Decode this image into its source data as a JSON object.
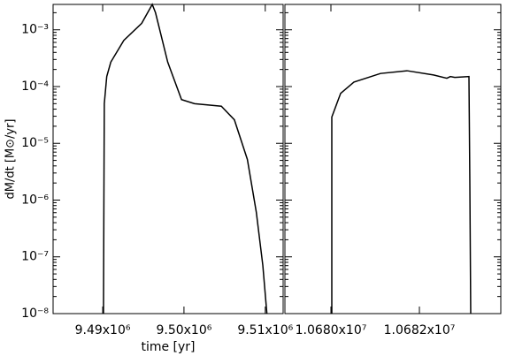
{
  "chart_data": [
    {
      "type": "line",
      "xlabel": "time [yr]",
      "ylabel": "dM/dt [M⊙/yr]",
      "log_y": true,
      "x": [
        9490100,
        9490150,
        9490200,
        9490500,
        9491000,
        9492600,
        9494800,
        9496100,
        9496500,
        9498000,
        9499700,
        9501300,
        9504600,
        9506200,
        9507800,
        9508900,
        9509700,
        9510200
      ],
      "series": [
        {
          "name": "dM/dt",
          "color": "#000000",
          "values": [
            1e-08,
            1e-06,
            5e-05,
            0.00015,
            0.00027,
            0.00065,
            0.0013,
            0.0028,
            0.002,
            0.00027,
            5.9e-05,
            5e-05,
            4.5e-05,
            2.6e-05,
            5.2e-06,
            6.1e-07,
            7.1e-08,
            1e-08
          ]
        }
      ],
      "xlim": [
        9483900,
        9512200
      ],
      "xticks": [
        {
          "value": 9490000,
          "label": "9.49x10⁶"
        },
        {
          "value": 9500000,
          "label": "9.50x10⁶"
        },
        {
          "value": 9510000,
          "label": "9.51x10⁶"
        }
      ],
      "ylim": [
        1e-08,
        0.0028
      ],
      "yticks": [
        {
          "value": 1e-08,
          "label": "10⁻⁸"
        },
        {
          "value": 1e-07,
          "label": "10⁻⁷"
        },
        {
          "value": 1e-06,
          "label": "10⁻⁶"
        },
        {
          "value": 1e-05,
          "label": "10⁻⁵"
        },
        {
          "value": 0.0001,
          "label": "10⁻⁴"
        },
        {
          "value": 0.001,
          "label": "10⁻³"
        }
      ]
    },
    {
      "type": "line",
      "log_y": true,
      "x": [
        10680020,
        10680020,
        10680220,
        10680520,
        10681120,
        10681720,
        10682320,
        10682620,
        10682700,
        10682800,
        10683120,
        10683140,
        10683160
      ],
      "series": [
        {
          "name": "dM/dt",
          "color": "#000000",
          "values": [
            1e-08,
            2.9e-05,
            7.6e-05,
            0.00012,
            0.00017,
            0.00019,
            0.00016,
            0.00014,
            0.00015,
            0.000145,
            0.00015,
            2e-06,
            1e-08
          ]
        }
      ],
      "xlim": [
        10678960,
        10683840
      ],
      "xticks": [
        {
          "value": 10680000,
          "label": "1.0680x10⁷"
        },
        {
          "value": 10682000,
          "label": "1.0682x10⁷"
        }
      ],
      "ylim": [
        1e-08,
        0.0028
      ],
      "yticks": [
        1e-08,
        1e-07,
        1e-06,
        1e-05,
        0.0001,
        0.001
      ]
    }
  ]
}
